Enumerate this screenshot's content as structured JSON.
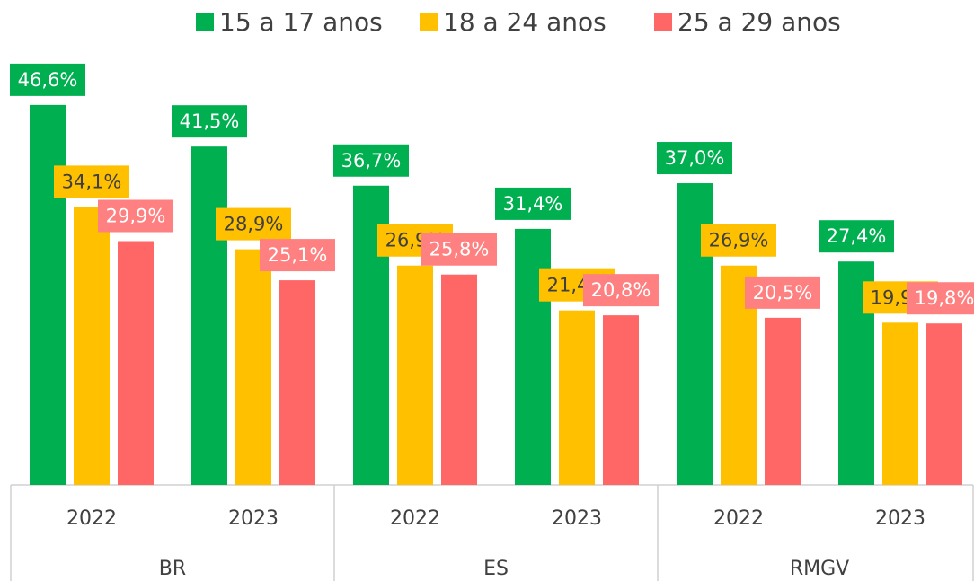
{
  "chart_data": {
    "type": "bar",
    "categories": [
      "2022",
      "2023",
      "2022",
      "2023",
      "2022",
      "2023"
    ],
    "groups": [
      "BR",
      "ES",
      "RMGV"
    ],
    "series": [
      {
        "name": "15 a 17 anos",
        "color": "#00b050",
        "values": [
          46.6,
          41.5,
          36.7,
          31.4,
          37.0,
          27.4
        ],
        "value_labels": [
          "46,6%",
          "41,5%",
          "36,7%",
          "31,4%",
          "37,0%",
          "27,4%"
        ]
      },
      {
        "name": "18 a 24 anos",
        "color": "#ffc000",
        "values": [
          34.1,
          28.9,
          26.9,
          21.4,
          26.9,
          19.9
        ],
        "value_labels": [
          "34,1%",
          "28,9%",
          "26,9%",
          "21,4%",
          "26,9%",
          "19,9%"
        ]
      },
      {
        "name": "25 a 29 anos",
        "color": "#ff6666",
        "values": [
          29.9,
          25.1,
          25.8,
          20.8,
          20.5,
          19.8
        ],
        "value_labels": [
          "29,9%",
          "25,1%",
          "25,8%",
          "20,8%",
          "20,5%",
          "19,8%"
        ]
      }
    ],
    "legend": "top"
  }
}
